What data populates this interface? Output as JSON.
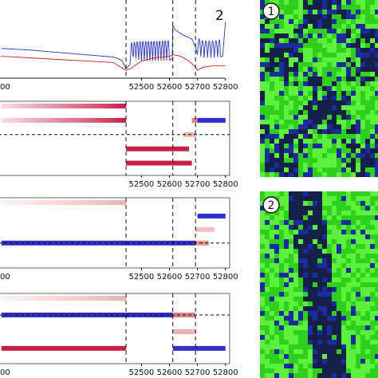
{
  "chart_data": [
    {
      "type": "line",
      "panel_label": "2",
      "xlim": [
        51995,
        52815
      ],
      "x_ticks": [
        "52500",
        "52600",
        "52700",
        "52800"
      ],
      "x_tick_values": [
        52500,
        52600,
        52700,
        52800
      ],
      "left_tick_label": "00",
      "ylim": [
        0,
        1
      ],
      "vlines": [
        52445,
        52612,
        52693
      ],
      "grid": false,
      "series": [
        {
          "color": "#2a33c8",
          "x": [
            52000,
            52100,
            52200,
            52300,
            52400,
            52430,
            52445,
            52465,
            52500,
            52550,
            52600,
            52610,
            52612,
            52620,
            52650,
            52680,
            52693,
            52700,
            52720,
            52760,
            52790,
            52800
          ],
          "y": [
            0.38,
            0.36,
            0.33,
            0.3,
            0.27,
            0.23,
            0.12,
            0.2,
            0.22,
            0.22,
            0.23,
            0.25,
            0.68,
            0.62,
            0.55,
            0.5,
            0.4,
            0.3,
            0.26,
            0.26,
            0.28,
            0.72
          ]
        },
        {
          "color": "#d02020",
          "x": [
            52000,
            52100,
            52200,
            52300,
            52400,
            52445,
            52460,
            52500,
            52550,
            52600,
            52612,
            52640,
            52670,
            52693,
            52700,
            52720,
            52760,
            52800
          ],
          "y": [
            0.28,
            0.26,
            0.24,
            0.22,
            0.2,
            0.1,
            0.12,
            0.22,
            0.26,
            0.28,
            0.3,
            0.28,
            0.22,
            0.14,
            0.1,
            0.14,
            0.16,
            0.16
          ]
        }
      ],
      "oscillation": {
        "x_range": [
          52460,
          52600
        ],
        "amplitude": 0.26,
        "period": 10
      },
      "oscillation2": {
        "x_range": [
          52700,
          52780
        ],
        "amplitude": 0.22,
        "period": 12
      }
    },
    {
      "type": "heatmap",
      "xlim": [
        51995,
        52815
      ],
      "x_ticks": [
        "52500",
        "52600",
        "52700",
        "52800"
      ],
      "x_tick_values": [
        52500,
        52600,
        52700,
        52800
      ],
      "left_tick_label": "",
      "vlines": [
        52445,
        52612,
        52693
      ],
      "hline_state": 2,
      "states": 5,
      "segments": [
        {
          "state": 0,
          "x0": 52000,
          "x1": 52445,
          "color": "#c81f4a",
          "fade": true
        },
        {
          "state": 1,
          "x0": 52000,
          "x1": 52445,
          "color": "#c81f4a",
          "fade": true
        },
        {
          "state": 1,
          "x0": 52680,
          "x1": 52700,
          "color": "#e08080",
          "fade": false
        },
        {
          "state": 1,
          "x0": 52700,
          "x1": 52800,
          "color": "#3030c8",
          "fade": false
        },
        {
          "state": 2,
          "x0": 52650,
          "x1": 52693,
          "color": "#f0b0b0",
          "fade": false
        },
        {
          "state": 3,
          "x0": 52445,
          "x1": 52670,
          "color": "#c81f4a",
          "fade": false
        },
        {
          "state": 4,
          "x0": 52445,
          "x1": 52680,
          "color": "#c81f4a",
          "fade": false
        }
      ]
    },
    {
      "type": "heatmap",
      "xlim": [
        51995,
        52815
      ],
      "x_ticks": [
        "52500",
        "52600",
        "52700",
        "52800"
      ],
      "x_tick_values": [
        52500,
        52600,
        52700,
        52800
      ],
      "left_tick_label": "00",
      "vlines": [
        52445,
        52612,
        52693
      ],
      "hline_state": 3,
      "states": 5,
      "segments": [
        {
          "state": 0,
          "x0": 52000,
          "x1": 52445,
          "color": "#f0b0b0",
          "fade": true
        },
        {
          "state": 1,
          "x0": 52700,
          "x1": 52800,
          "color": "#3030c8",
          "fade": false
        },
        {
          "state": 2,
          "x0": 52693,
          "x1": 52760,
          "color": "#f4c0c0",
          "fade": false
        },
        {
          "state": 3,
          "x0": 52000,
          "x1": 52693,
          "color": "#3030c8",
          "fade": false
        },
        {
          "state": 3,
          "x0": 52693,
          "x1": 52740,
          "color": "#e89090",
          "fade": false
        }
      ]
    },
    {
      "type": "heatmap",
      "xlim": [
        51995,
        52815
      ],
      "x_ticks": [
        "52500",
        "52600",
        "52700",
        "52800"
      ],
      "x_tick_values": [
        52500,
        52600,
        52700,
        52800
      ],
      "left_tick_label": "00",
      "vlines": [
        52445,
        52612,
        52693
      ],
      "hline_state": 1,
      "states": 4,
      "segments": [
        {
          "state": 0,
          "x0": 52000,
          "x1": 52445,
          "color": "#f0b0b0",
          "fade": true
        },
        {
          "state": 1,
          "x0": 52000,
          "x1": 52612,
          "color": "#3030c8",
          "fade": false
        },
        {
          "state": 1,
          "x0": 52612,
          "x1": 52693,
          "color": "#e08080",
          "fade": false
        },
        {
          "state": 2,
          "x0": 52612,
          "x1": 52693,
          "color": "#f0b0b0",
          "fade": false
        },
        {
          "state": 3,
          "x0": 52000,
          "x1": 52445,
          "color": "#c81f4a",
          "fade": false
        },
        {
          "state": 3,
          "x0": 52612,
          "x1": 52800,
          "color": "#3030c8",
          "fade": false
        }
      ]
    }
  ],
  "snapshots": [
    {
      "label": "1",
      "base": "#2a6a1a",
      "green": 0.55,
      "blue": 0.1,
      "pattern": "speckled"
    },
    {
      "label": "2",
      "base": "#1a9a10",
      "green": 0.65,
      "blue": 0.25,
      "pattern": "band"
    }
  ]
}
